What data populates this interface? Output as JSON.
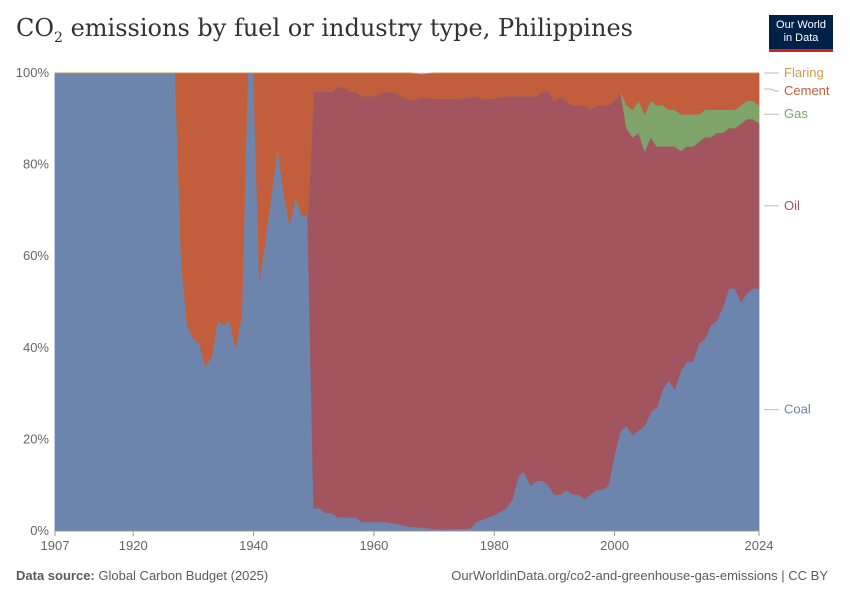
{
  "header": {
    "title_main": "CO",
    "title_sub": "2",
    "title_rest": " emissions by fuel or industry type, Philippines",
    "logo_line1": "Our World",
    "logo_line2": "in Data"
  },
  "footer": {
    "source_label": "Data source:",
    "source_value": " Global Carbon Budget (2025)",
    "credit": "OurWorldinData.org/co2-and-greenhouse-gas-emissions | CC BY"
  },
  "chart_data": {
    "type": "area",
    "stacked": "percent",
    "title": "CO₂ emissions by fuel or industry type, Philippines",
    "x_ticks": [
      "1907",
      "1920",
      "1940",
      "1960",
      "1980",
      "2000",
      "2024"
    ],
    "y_ticks": [
      "0%",
      "20%",
      "40%",
      "60%",
      "80%",
      "100%"
    ],
    "xlim": [
      1907,
      2024
    ],
    "ylim": [
      0,
      100
    ],
    "grid": true,
    "legend_position": "right",
    "series": [
      {
        "name": "Coal",
        "color": "#6d84ad",
        "points": [
          [
            1907,
            100
          ],
          [
            1927,
            100
          ],
          [
            1928,
            59
          ],
          [
            1929,
            45
          ],
          [
            1930,
            42
          ],
          [
            1931,
            41
          ],
          [
            1932,
            36
          ],
          [
            1933,
            38
          ],
          [
            1934,
            46
          ],
          [
            1935,
            45
          ],
          [
            1936,
            46
          ],
          [
            1937,
            40
          ],
          [
            1938,
            47
          ],
          [
            1939,
            100
          ],
          [
            1940,
            100
          ],
          [
            1941,
            55
          ],
          [
            1942,
            64
          ],
          [
            1943,
            74
          ],
          [
            1944,
            84
          ],
          [
            1945,
            74
          ],
          [
            1946,
            67
          ],
          [
            1947,
            73
          ],
          [
            1948,
            69
          ],
          [
            1949,
            69
          ],
          [
            1950,
            5
          ],
          [
            1951,
            5
          ],
          [
            1952,
            4
          ],
          [
            1953,
            4
          ],
          [
            1954,
            3
          ],
          [
            1955,
            3
          ],
          [
            1956,
            3
          ],
          [
            1957,
            3
          ],
          [
            1958,
            2
          ],
          [
            1960,
            2
          ],
          [
            1962,
            2
          ],
          [
            1964,
            1.5
          ],
          [
            1966,
            1
          ],
          [
            1968,
            0.8
          ],
          [
            1970,
            0.5
          ],
          [
            1972,
            0.4
          ],
          [
            1974,
            0.5
          ],
          [
            1976,
            0.6
          ],
          [
            1977,
            2
          ],
          [
            1978,
            2.5
          ],
          [
            1980,
            3.5
          ],
          [
            1982,
            5
          ],
          [
            1983,
            7
          ],
          [
            1984,
            12
          ],
          [
            1985,
            13
          ],
          [
            1986,
            10
          ],
          [
            1987,
            11
          ],
          [
            1988,
            11
          ],
          [
            1989,
            10
          ],
          [
            1990,
            8
          ],
          [
            1991,
            8
          ],
          [
            1992,
            9
          ],
          [
            1993,
            8
          ],
          [
            1994,
            8
          ],
          [
            1995,
            7
          ],
          [
            1996,
            8
          ],
          [
            1997,
            9
          ],
          [
            1998,
            9
          ],
          [
            1999,
            10
          ],
          [
            2000,
            17
          ],
          [
            2001,
            22
          ],
          [
            2002,
            23
          ],
          [
            2003,
            21
          ],
          [
            2004,
            22
          ],
          [
            2005,
            23
          ],
          [
            2006,
            26
          ],
          [
            2007,
            27
          ],
          [
            2008,
            31
          ],
          [
            2009,
            33
          ],
          [
            2010,
            31
          ],
          [
            2011,
            35
          ],
          [
            2012,
            37
          ],
          [
            2013,
            37
          ],
          [
            2014,
            41
          ],
          [
            2015,
            42
          ],
          [
            2016,
            45
          ],
          [
            2017,
            46
          ],
          [
            2018,
            49
          ],
          [
            2019,
            53
          ],
          [
            2020,
            53
          ],
          [
            2021,
            50
          ],
          [
            2022,
            52
          ],
          [
            2023,
            53
          ],
          [
            2024,
            53
          ]
        ]
      },
      {
        "name": "Oil",
        "color": "#a2555e",
        "points": [
          [
            1907,
            0
          ],
          [
            1927,
            0
          ],
          [
            1928,
            0
          ],
          [
            1929,
            0
          ],
          [
            1930,
            0
          ],
          [
            1931,
            0
          ],
          [
            1932,
            0
          ],
          [
            1933,
            0
          ],
          [
            1934,
            0
          ],
          [
            1935,
            0
          ],
          [
            1936,
            0
          ],
          [
            1937,
            0
          ],
          [
            1938,
            0
          ],
          [
            1939,
            0
          ],
          [
            1940,
            0
          ],
          [
            1941,
            0
          ],
          [
            1942,
            0
          ],
          [
            1943,
            0
          ],
          [
            1944,
            0
          ],
          [
            1945,
            0
          ],
          [
            1946,
            0
          ],
          [
            1947,
            0
          ],
          [
            1948,
            0
          ],
          [
            1949,
            0
          ],
          [
            1950,
            91
          ],
          [
            1951,
            91
          ],
          [
            1952,
            92
          ],
          [
            1953,
            92
          ],
          [
            1954,
            94
          ],
          [
            1955,
            94
          ],
          [
            1956,
            93
          ],
          [
            1957,
            93
          ],
          [
            1958,
            93
          ],
          [
            1960,
            93
          ],
          [
            1962,
            94
          ],
          [
            1964,
            94
          ],
          [
            1966,
            93
          ],
          [
            1968,
            94
          ],
          [
            1970,
            94
          ],
          [
            1972,
            94
          ],
          [
            1974,
            94
          ],
          [
            1976,
            94
          ],
          [
            1977,
            93
          ],
          [
            1978,
            92
          ],
          [
            1980,
            91
          ],
          [
            1982,
            90
          ],
          [
            1983,
            88
          ],
          [
            1984,
            83
          ],
          [
            1985,
            82
          ],
          [
            1986,
            85
          ],
          [
            1987,
            84
          ],
          [
            1988,
            85
          ],
          [
            1989,
            86
          ],
          [
            1990,
            86
          ],
          [
            1991,
            87
          ],
          [
            1992,
            85
          ],
          [
            1993,
            85
          ],
          [
            1994,
            85
          ],
          [
            1995,
            86
          ],
          [
            1996,
            84
          ],
          [
            1997,
            84
          ],
          [
            1998,
            84
          ],
          [
            1999,
            83
          ],
          [
            2000,
            77
          ],
          [
            2001,
            74
          ],
          [
            2002,
            65
          ],
          [
            2003,
            65
          ],
          [
            2004,
            65
          ],
          [
            2005,
            60
          ],
          [
            2006,
            60
          ],
          [
            2007,
            57
          ],
          [
            2008,
            53
          ],
          [
            2009,
            51
          ],
          [
            2010,
            53
          ],
          [
            2011,
            48
          ],
          [
            2012,
            47
          ],
          [
            2013,
            47
          ],
          [
            2014,
            44
          ],
          [
            2015,
            44
          ],
          [
            2016,
            41
          ],
          [
            2017,
            41
          ],
          [
            2018,
            38
          ],
          [
            2019,
            35
          ],
          [
            2020,
            35
          ],
          [
            2021,
            39
          ],
          [
            2022,
            38
          ],
          [
            2023,
            37
          ],
          [
            2024,
            36
          ]
        ]
      },
      {
        "name": "Gas",
        "color": "#7ea36b",
        "points": [
          [
            1907,
            0
          ],
          [
            2000,
            0
          ],
          [
            2001,
            0
          ],
          [
            2002,
            5
          ],
          [
            2003,
            6
          ],
          [
            2004,
            7
          ],
          [
            2005,
            8
          ],
          [
            2006,
            8
          ],
          [
            2007,
            9
          ],
          [
            2008,
            9
          ],
          [
            2009,
            8
          ],
          [
            2010,
            8
          ],
          [
            2011,
            8
          ],
          [
            2012,
            7
          ],
          [
            2013,
            7
          ],
          [
            2014,
            6
          ],
          [
            2015,
            6
          ],
          [
            2016,
            6
          ],
          [
            2017,
            5
          ],
          [
            2018,
            5
          ],
          [
            2019,
            4
          ],
          [
            2020,
            4
          ],
          [
            2021,
            4
          ],
          [
            2022,
            4
          ],
          [
            2023,
            4
          ],
          [
            2024,
            4
          ]
        ]
      },
      {
        "name": "Cement",
        "color": "#c35e3c",
        "points": [
          [
            1907,
            0
          ],
          [
            1927,
            0
          ],
          [
            1928,
            41
          ],
          [
            1929,
            55
          ],
          [
            1930,
            58
          ],
          [
            1931,
            59
          ],
          [
            1932,
            64
          ],
          [
            1933,
            62
          ],
          [
            1934,
            54
          ],
          [
            1935,
            55
          ],
          [
            1936,
            54
          ],
          [
            1937,
            60
          ],
          [
            1938,
            53
          ],
          [
            1939,
            0
          ],
          [
            1940,
            0
          ],
          [
            1941,
            45
          ],
          [
            1942,
            36
          ],
          [
            1943,
            26
          ],
          [
            1944,
            16
          ],
          [
            1945,
            26
          ],
          [
            1946,
            33
          ],
          [
            1947,
            27
          ],
          [
            1948,
            31
          ],
          [
            1949,
            31
          ],
          [
            1950,
            4
          ],
          [
            1951,
            4
          ],
          [
            1952,
            4
          ],
          [
            1953,
            4
          ],
          [
            1954,
            3
          ],
          [
            1955,
            3
          ],
          [
            1956,
            4
          ],
          [
            1957,
            4
          ],
          [
            1958,
            5
          ],
          [
            1960,
            5
          ],
          [
            1962,
            4
          ],
          [
            1964,
            4.5
          ],
          [
            1966,
            6
          ],
          [
            1968,
            5
          ],
          [
            1970,
            5.5
          ],
          [
            1972,
            5.6
          ],
          [
            1974,
            5.5
          ],
          [
            1976,
            5.4
          ],
          [
            1977,
            5
          ],
          [
            1978,
            5.5
          ],
          [
            1980,
            5.5
          ],
          [
            1982,
            5
          ],
          [
            1983,
            5
          ],
          [
            1984,
            5
          ],
          [
            1985,
            5
          ],
          [
            1986,
            5
          ],
          [
            1987,
            5
          ],
          [
            1988,
            4
          ],
          [
            1989,
            4
          ],
          [
            1990,
            6
          ],
          [
            1991,
            5
          ],
          [
            1992,
            6
          ],
          [
            1993,
            7
          ],
          [
            1994,
            7
          ],
          [
            1995,
            7
          ],
          [
            1996,
            8
          ],
          [
            1997,
            7
          ],
          [
            1998,
            7
          ],
          [
            1999,
            7
          ],
          [
            2000,
            6
          ],
          [
            2001,
            4
          ],
          [
            2002,
            7
          ],
          [
            2003,
            8
          ],
          [
            2004,
            6
          ],
          [
            2005,
            9
          ],
          [
            2006,
            6
          ],
          [
            2007,
            7
          ],
          [
            2008,
            7
          ],
          [
            2009,
            8
          ],
          [
            2010,
            8
          ],
          [
            2011,
            9
          ],
          [
            2012,
            9
          ],
          [
            2013,
            9
          ],
          [
            2014,
            9
          ],
          [
            2015,
            8
          ],
          [
            2016,
            8
          ],
          [
            2017,
            8
          ],
          [
            2018,
            8
          ],
          [
            2019,
            8
          ],
          [
            2020,
            8
          ],
          [
            2021,
            7
          ],
          [
            2022,
            6
          ],
          [
            2023,
            6
          ],
          [
            2024,
            7
          ]
        ]
      },
      {
        "name": "Flaring",
        "color": "#d19c4a",
        "points": [
          [
            1907,
            0
          ],
          [
            2024,
            0
          ]
        ]
      }
    ]
  }
}
